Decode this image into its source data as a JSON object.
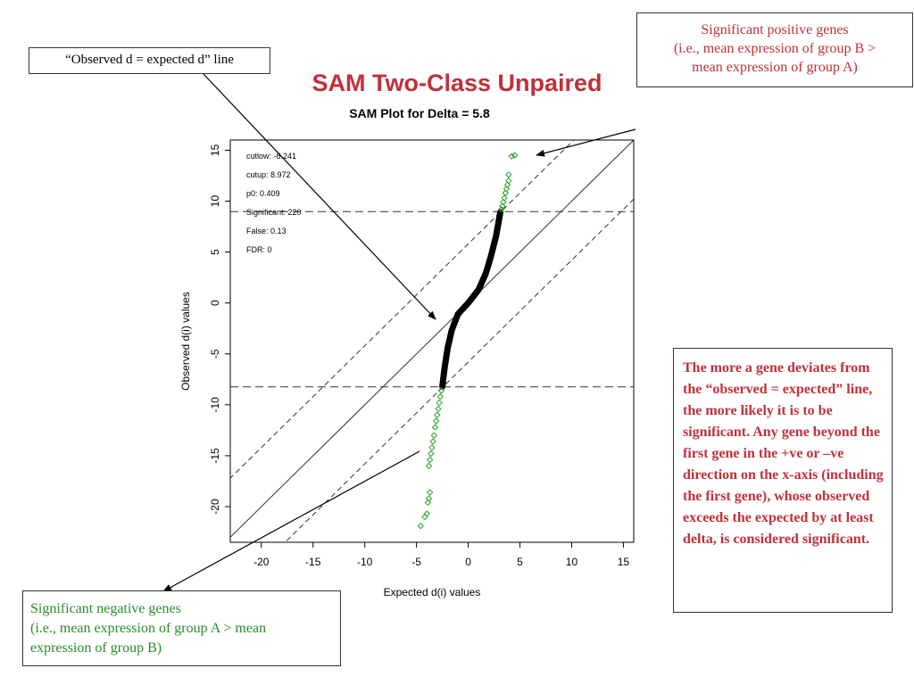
{
  "slide_title": "SAM Two-Class Unpaired",
  "annotations": {
    "observed_line_box": "“Observed d = expected d” line",
    "positive_box": {
      "line1": "Significant positive genes",
      "line2": "(i.e., mean expression of group B  >",
      "line3": "mean expression of  group A)"
    },
    "negative_box": {
      "line1": "Significant negative genes",
      "line2": "(i.e., mean expression of group A > mean",
      "line3": "expression of group B)"
    },
    "explanation": "The more a gene deviates from the “observed = expected” line, the more likely it is to be significant. Any gene beyond the first gene in the +ve or –ve direction on the x-axis (including the first gene), whose observed exceeds the expected by at least delta, is considered significant."
  },
  "colors": {
    "title_red": "#c0303a",
    "significant_green": "#2ca02c",
    "points_black": "#000000"
  },
  "chart_data": {
    "type": "scatter",
    "title": "SAM Plot for Delta = 5.8",
    "xlabel": "Expected d(i) values",
    "ylabel": "Observed d(i) values",
    "xlim": [
      -23,
      16
    ],
    "ylim": [
      -23.5,
      16
    ],
    "x_ticks": [
      -20,
      -15,
      -10,
      -5,
      0,
      5,
      10,
      15
    ],
    "y_ticks": [
      -20,
      -15,
      -10,
      -5,
      0,
      5,
      10,
      15
    ],
    "stats": [
      "cutlow: -8.241",
      "cutup: 8.972",
      "p0: 0.409",
      "Significant: 220",
      "False: 0.13",
      "FDR: 0"
    ],
    "cutlow": -8.241,
    "cutup": 8.972,
    "delta": 5.8,
    "reference_lines": {
      "identity": {
        "slope": 1,
        "intercept": 0
      },
      "upper_delta": {
        "slope": 1,
        "intercept": 5.8
      },
      "lower_delta": {
        "slope": 1,
        "intercept": -5.8
      }
    },
    "curve": [
      {
        "x": -2.5,
        "y": -8.2
      },
      {
        "x": -2.3,
        "y": -6.5
      },
      {
        "x": -2.0,
        "y": -4.5
      },
      {
        "x": -1.6,
        "y": -2.7
      },
      {
        "x": -1.0,
        "y": -1.1
      },
      {
        "x": 0.0,
        "y": 0.0
      },
      {
        "x": 1.0,
        "y": 1.3
      },
      {
        "x": 1.7,
        "y": 2.9
      },
      {
        "x": 2.2,
        "y": 4.6
      },
      {
        "x": 2.7,
        "y": 6.6
      },
      {
        "x": 3.1,
        "y": 8.9
      }
    ],
    "significant_points": [
      {
        "x": 4.5,
        "y": 14.5
      },
      {
        "x": 4.2,
        "y": 14.4
      },
      {
        "x": 3.9,
        "y": 12.0
      },
      {
        "x": 3.8,
        "y": 11.6
      },
      {
        "x": 3.7,
        "y": 11.2
      },
      {
        "x": 3.6,
        "y": 10.8
      },
      {
        "x": 3.5,
        "y": 10.3
      },
      {
        "x": 3.4,
        "y": 9.9
      },
      {
        "x": 3.3,
        "y": 9.5
      },
      {
        "x": 3.2,
        "y": 9.2
      },
      {
        "x": 3.9,
        "y": 12.6
      },
      {
        "x": -2.6,
        "y": -8.6
      },
      {
        "x": -2.7,
        "y": -9.2
      },
      {
        "x": -2.8,
        "y": -9.8
      },
      {
        "x": -2.9,
        "y": -10.4
      },
      {
        "x": -3.0,
        "y": -11.0
      },
      {
        "x": -3.1,
        "y": -11.6
      },
      {
        "x": -3.2,
        "y": -12.2
      },
      {
        "x": -3.3,
        "y": -13.0
      },
      {
        "x": -3.4,
        "y": -13.6
      },
      {
        "x": -3.5,
        "y": -14.2
      },
      {
        "x": -3.6,
        "y": -14.8
      },
      {
        "x": -3.7,
        "y": -15.4
      },
      {
        "x": -3.8,
        "y": -16.0
      },
      {
        "x": -3.7,
        "y": -18.6
      },
      {
        "x": -3.8,
        "y": -19.2
      },
      {
        "x": -3.9,
        "y": -19.6
      },
      {
        "x": -4.0,
        "y": -20.7
      },
      {
        "x": -4.2,
        "y": -21.0
      },
      {
        "x": -4.6,
        "y": -21.9
      }
    ]
  }
}
